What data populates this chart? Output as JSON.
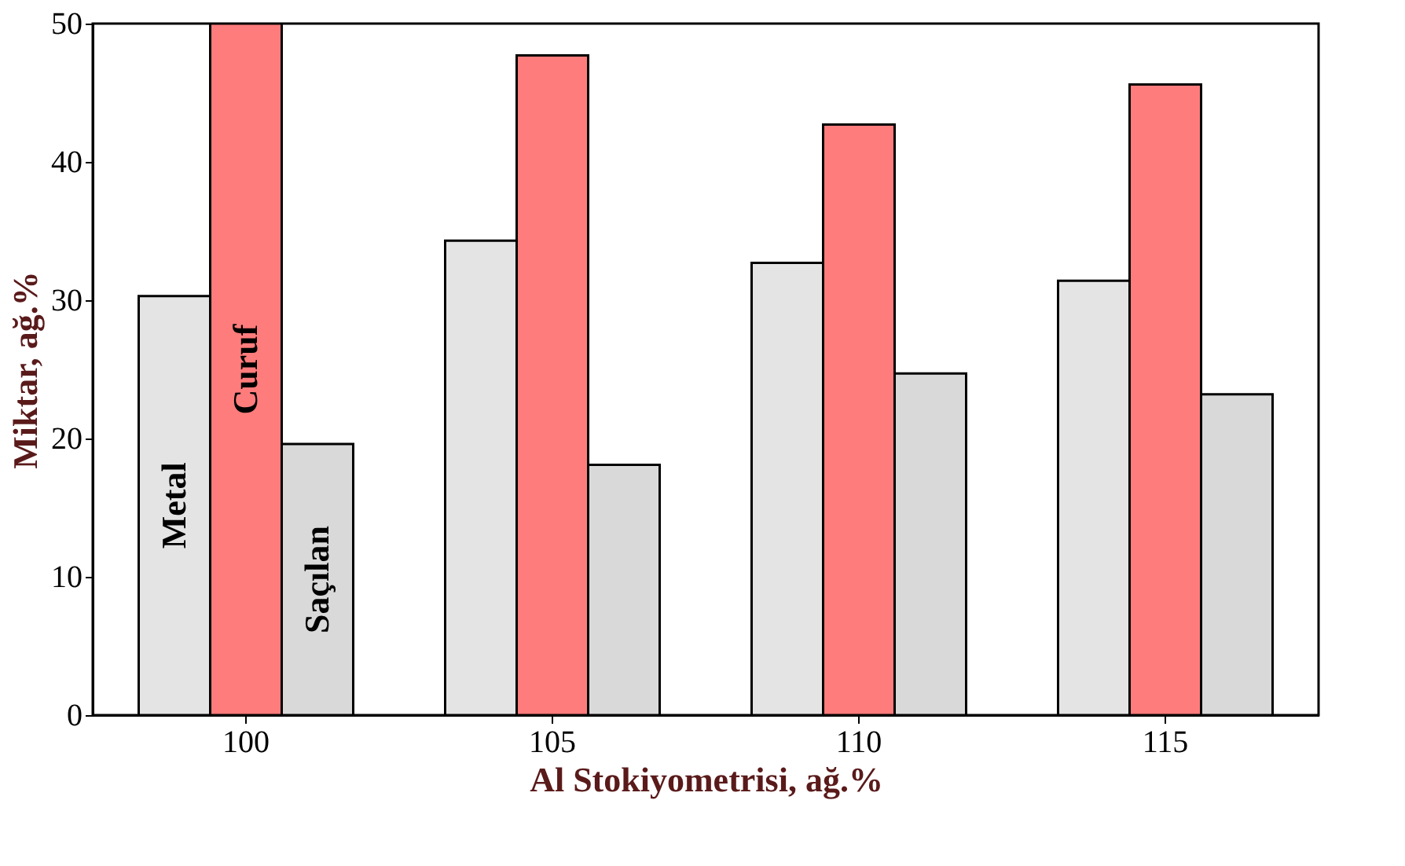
{
  "chart_data": {
    "type": "bar",
    "xlabel": "Al Stokiyometrisi, ağ.%",
    "ylabel": "Miktar, ağ.%",
    "categories": [
      "100",
      "105",
      "110",
      "115"
    ],
    "series": [
      {
        "name": "Metal",
        "color": "#e4e4e4",
        "values": [
          30.3,
          34.3,
          32.7,
          31.4
        ]
      },
      {
        "name": "Curuf",
        "color": "#ff7c7c",
        "values": [
          50,
          47.7,
          42.7,
          45.6
        ]
      },
      {
        "name": "Saçılan",
        "color": "#d9d9d9",
        "values": [
          19.6,
          18.1,
          24.7,
          23.2
        ]
      }
    ],
    "ylim": [
      0,
      50
    ],
    "yticks": [
      0,
      10,
      20,
      30,
      40,
      50
    ],
    "grid": false,
    "legend": false
  }
}
